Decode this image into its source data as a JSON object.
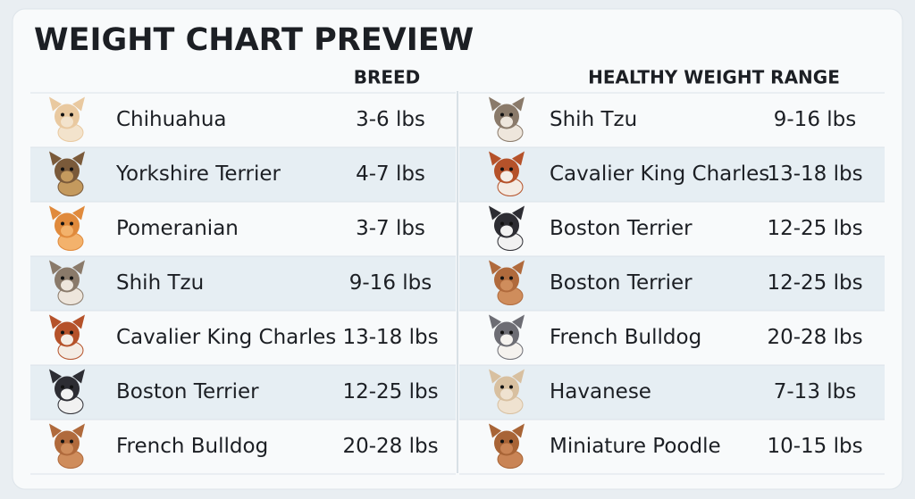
{
  "header": {
    "title": "WEIGHT CHART PREVIEW",
    "columns": [
      "BREED",
      "HEALTHY WEIGHT RANGE"
    ]
  },
  "tables": [
    {
      "rows": [
        [
          "Chihuahua",
          "3-6 lbs"
        ],
        [
          "Yorkshire Terrier",
          "4-7 lbs"
        ],
        [
          "Pomeranian",
          "3-7 lbs"
        ],
        [
          "Shih Tzu",
          "9-16 lbs"
        ],
        [
          "Cavalier King Charles",
          "13-18 lbs"
        ],
        [
          "Boston Terrier",
          "12-25 lbs"
        ],
        [
          "French Bulldog",
          "20-28 lbs"
        ]
      ]
    },
    {
      "rows": [
        [
          "Shih Tzu",
          "9-16 lbs"
        ],
        [
          "Cavalier King Charles",
          "13-18 lbs"
        ],
        [
          "Boston Terrier",
          "12-25 lbs"
        ],
        [
          "Boston Terrier",
          "12-25 lbs"
        ],
        [
          "French Bulldog",
          "20-28 lbs"
        ],
        [
          "Havanese",
          "7-13 lbs"
        ],
        [
          "Miniature Poodle",
          "10-15 lbs"
        ]
      ]
    }
  ]
}
